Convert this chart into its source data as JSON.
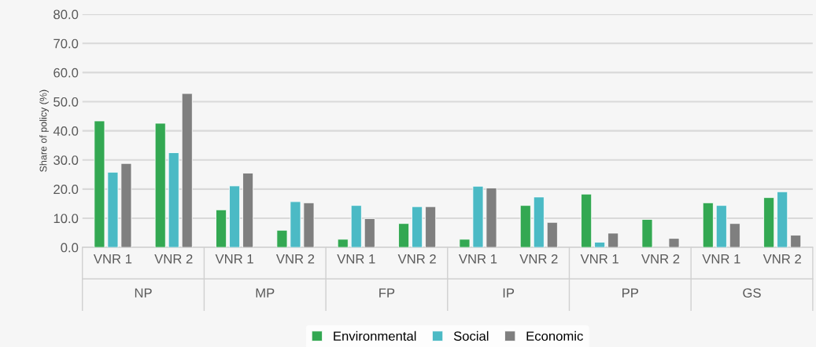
{
  "chart_data": {
    "type": "bar",
    "ylabel": "Share of policy (%)",
    "categories": [
      "VNR 1",
      "VNR 2",
      "VNR 1",
      "VNR 2",
      "VNR 1",
      "VNR 2",
      "VNR 1",
      "VNR 2",
      "VNR 1",
      "VNR 2",
      "VNR 1",
      "VNR 2"
    ],
    "annotations": [
      "NP",
      "MP",
      "FP",
      "IP",
      "PP",
      "GS"
    ],
    "series": [
      {
        "name": "Environmental",
        "color": "#33a852",
        "values": [
          43.4,
          42.6,
          12.9,
          5.9,
          2.8,
          8.2,
          2.8,
          14.4,
          18.3,
          9.6,
          15.3,
          17.1
        ]
      },
      {
        "name": "Social",
        "color": "#4bbac5",
        "values": [
          25.8,
          32.5,
          21.1,
          15.7,
          14.4,
          14.0,
          21.0,
          17.3,
          1.8,
          null,
          14.4,
          19.1
        ]
      },
      {
        "name": "Economic",
        "color": "#7f7f7f",
        "values": [
          28.8,
          52.8,
          25.5,
          15.3,
          9.9,
          14.0,
          20.4,
          8.6,
          4.9,
          3.1,
          8.2,
          4.2
        ]
      }
    ],
    "ylim": [
      0,
      80
    ],
    "yticks": [
      {
        "value": 0,
        "label": "0.0"
      },
      {
        "value": 10,
        "label": "10.0"
      },
      {
        "value": 20,
        "label": "20.0"
      },
      {
        "value": 30,
        "label": "30.0"
      },
      {
        "value": 40,
        "label": "40.0"
      },
      {
        "value": 50,
        "label": "50.0"
      },
      {
        "value": 60,
        "label": "60.0"
      },
      {
        "value": 70,
        "label": "70.0"
      },
      {
        "value": 80,
        "label": "80.0"
      }
    ],
    "grid": "y",
    "legend": "bottom"
  }
}
